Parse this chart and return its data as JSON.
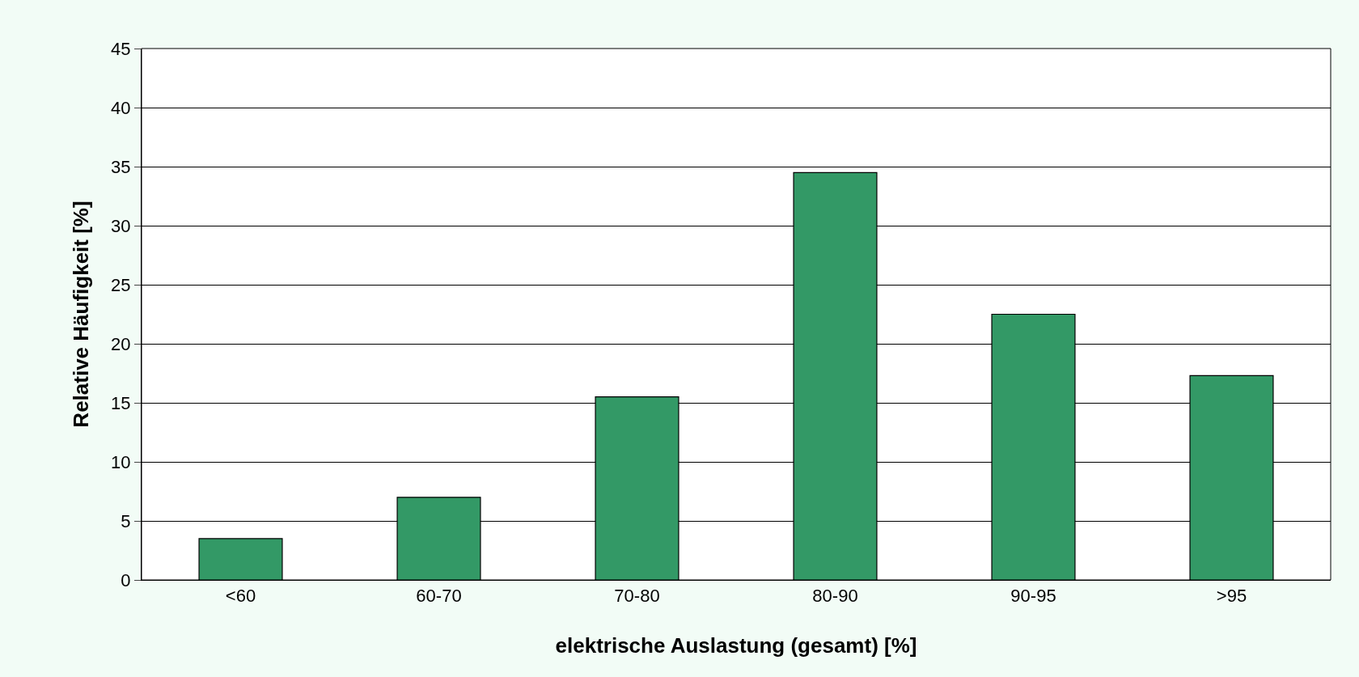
{
  "chart_data": {
    "type": "bar",
    "xlabel": "elektrische Auslastung (gesamt) [%]",
    "ylabel": "Relative Häufigkeit [%]",
    "categories": [
      "<60",
      "60-70",
      "70-80",
      "80-90",
      "90-95",
      ">95"
    ],
    "values": [
      3.5,
      7.0,
      15.5,
      34.5,
      22.5,
      17.3
    ],
    "color": "#339966",
    "ylim": [
      0,
      45
    ],
    "yticks": [
      0,
      5,
      10,
      15,
      20,
      25,
      30,
      35,
      40,
      45
    ],
    "grid": "y"
  }
}
